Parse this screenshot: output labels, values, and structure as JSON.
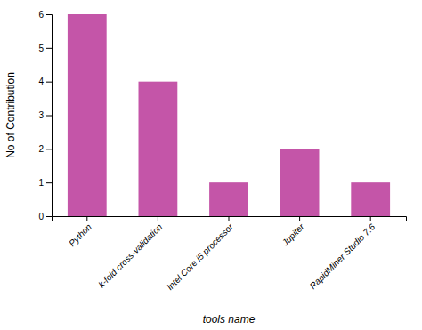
{
  "chart_data": {
    "type": "bar",
    "categories": [
      "Python",
      "k-fold cross-validation",
      "Intel Core i5 processor",
      "Jupiter",
      "RapidMiner Studio 7.6"
    ],
    "values": [
      6,
      4,
      1,
      2,
      1
    ],
    "color": "#c455a8",
    "xlabel": "tools name",
    "ylabel": "No of Contribution",
    "ylim": [
      0,
      6
    ],
    "yticks": [
      0,
      1,
      2,
      3,
      4,
      5,
      6
    ],
    "grid": false
  }
}
